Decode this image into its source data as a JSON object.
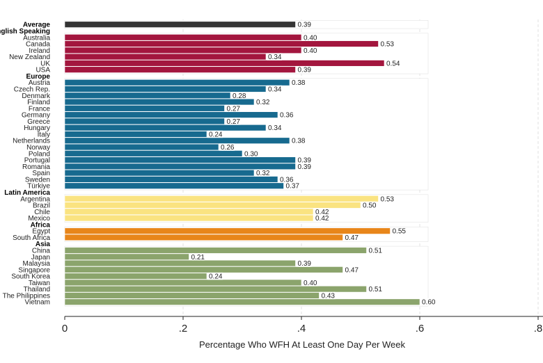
{
  "chart_data": {
    "type": "bar",
    "orientation": "horizontal",
    "title": "",
    "xlabel": "Percentage Who WFH At Least One Day Per Week",
    "ylabel": "",
    "xlim": [
      0,
      0.8
    ],
    "xticks": [
      0,
      0.2,
      0.4,
      0.6,
      0.8
    ],
    "xtick_labels": [
      "0",
      ".2",
      ".4",
      ".6",
      ".8"
    ],
    "grid": "vertical dashed",
    "groups": [
      {
        "name": "Average",
        "color": "#333333",
        "label_row": false,
        "items": [
          {
            "label": "Average",
            "value": 0.39,
            "value_label": "0.39"
          }
        ]
      },
      {
        "name": "English Speaking",
        "color": "#a3163e",
        "label_row": true,
        "items": [
          {
            "label": "Australia",
            "value": 0.4,
            "value_label": "0.40"
          },
          {
            "label": "Canada",
            "value": 0.53,
            "value_label": "0.53"
          },
          {
            "label": "Ireland",
            "value": 0.4,
            "value_label": "0.40"
          },
          {
            "label": "New Zealand",
            "value": 0.34,
            "value_label": "0.34"
          },
          {
            "label": "UK",
            "value": 0.54,
            "value_label": "0.54"
          },
          {
            "label": "USA",
            "value": 0.39,
            "value_label": "0.39"
          }
        ]
      },
      {
        "name": "Europe",
        "color": "#176a8f",
        "label_row": true,
        "items": [
          {
            "label": "Austria",
            "value": 0.38,
            "value_label": "0.38"
          },
          {
            "label": "Czech Rep.",
            "value": 0.34,
            "value_label": "0.34"
          },
          {
            "label": "Denmark",
            "value": 0.28,
            "value_label": "0.28"
          },
          {
            "label": "Finland",
            "value": 0.32,
            "value_label": "0.32"
          },
          {
            "label": "France",
            "value": 0.27,
            "value_label": "0.27"
          },
          {
            "label": "Germany",
            "value": 0.36,
            "value_label": "0.36"
          },
          {
            "label": "Greece",
            "value": 0.27,
            "value_label": "0.27"
          },
          {
            "label": "Hungary",
            "value": 0.34,
            "value_label": "0.34"
          },
          {
            "label": "Italy",
            "value": 0.24,
            "value_label": "0.24"
          },
          {
            "label": "Netherlands",
            "value": 0.38,
            "value_label": "0.38"
          },
          {
            "label": "Norway",
            "value": 0.26,
            "value_label": "0.26"
          },
          {
            "label": "Poland",
            "value": 0.3,
            "value_label": "0.30"
          },
          {
            "label": "Portugal",
            "value": 0.39,
            "value_label": "0.39"
          },
          {
            "label": "Romania",
            "value": 0.39,
            "value_label": "0.39"
          },
          {
            "label": "Spain",
            "value": 0.32,
            "value_label": "0.32"
          },
          {
            "label": "Sweden",
            "value": 0.36,
            "value_label": "0.36"
          },
          {
            "label": "Türkiye",
            "value": 0.37,
            "value_label": "0.37"
          }
        ]
      },
      {
        "name": "Latin America",
        "color": "#fae381",
        "label_row": true,
        "items": [
          {
            "label": "Argentina",
            "value": 0.53,
            "value_label": "0.53"
          },
          {
            "label": "Brazil",
            "value": 0.5,
            "value_label": "0.50"
          },
          {
            "label": "Chile",
            "value": 0.42,
            "value_label": "0.42"
          },
          {
            "label": "Mexico",
            "value": 0.42,
            "value_label": "0.42"
          }
        ]
      },
      {
        "name": "Africa",
        "color": "#e8861a",
        "label_row": true,
        "items": [
          {
            "label": "Egypt",
            "value": 0.55,
            "value_label": "0.55"
          },
          {
            "label": "South Africa",
            "value": 0.47,
            "value_label": "0.47"
          }
        ]
      },
      {
        "name": "Asia",
        "color": "#8ba46c",
        "label_row": true,
        "items": [
          {
            "label": "China",
            "value": 0.51,
            "value_label": "0.51"
          },
          {
            "label": "Japan",
            "value": 0.21,
            "value_label": "0.21"
          },
          {
            "label": "Malaysia",
            "value": 0.39,
            "value_label": "0.39"
          },
          {
            "label": "Singapore",
            "value": 0.47,
            "value_label": "0.47"
          },
          {
            "label": "South Korea",
            "value": 0.24,
            "value_label": "0.24"
          },
          {
            "label": "Taiwan",
            "value": 0.4,
            "value_label": "0.40"
          },
          {
            "label": "Thailand",
            "value": 0.51,
            "value_label": "0.51"
          },
          {
            "label": "The Philippines",
            "value": 0.43,
            "value_label": "0.43"
          },
          {
            "label": "Vietnam",
            "value": 0.6,
            "value_label": "0.60"
          }
        ]
      }
    ]
  }
}
